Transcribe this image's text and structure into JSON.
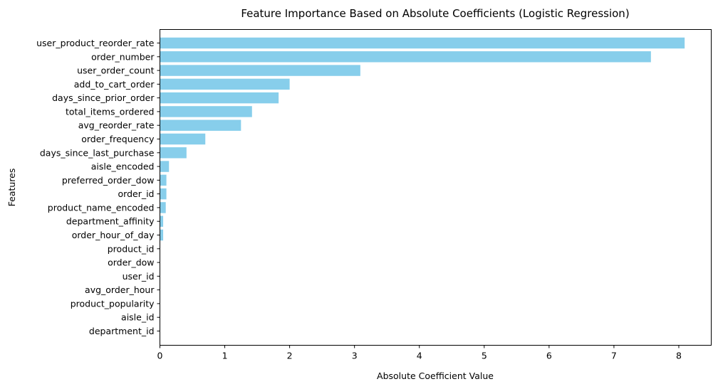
{
  "chart_data": {
    "type": "bar",
    "orientation": "horizontal",
    "title": "Feature Importance Based on Absolute Coefficients (Logistic Regression)",
    "xlabel": "Absolute Coefficient Value",
    "ylabel": "Features",
    "xlim": [
      0,
      8.5
    ],
    "xticks": [
      "0",
      "1",
      "2",
      "3",
      "4",
      "5",
      "6",
      "7",
      "8"
    ],
    "bar_color": "#87ceeb",
    "grid": false,
    "categories": [
      "user_product_reorder_rate",
      "order_number",
      "user_order_count",
      "add_to_cart_order",
      "days_since_prior_order",
      "total_items_ordered",
      "avg_reorder_rate",
      "order_frequency",
      "days_since_last_purchase",
      "aisle_encoded",
      "preferred_order_dow",
      "order_id",
      "product_name_encoded",
      "department_affinity",
      "order_hour_of_day",
      "product_id",
      "order_dow",
      "user_id",
      "avg_order_hour",
      "product_popularity",
      "aisle_id",
      "department_id"
    ],
    "values": [
      8.09,
      7.57,
      3.09,
      2.0,
      1.83,
      1.42,
      1.25,
      0.7,
      0.41,
      0.14,
      0.1,
      0.1,
      0.09,
      0.05,
      0.05,
      0.0,
      0.0,
      0.0,
      0.0,
      0.0,
      0.0,
      0.0
    ]
  }
}
